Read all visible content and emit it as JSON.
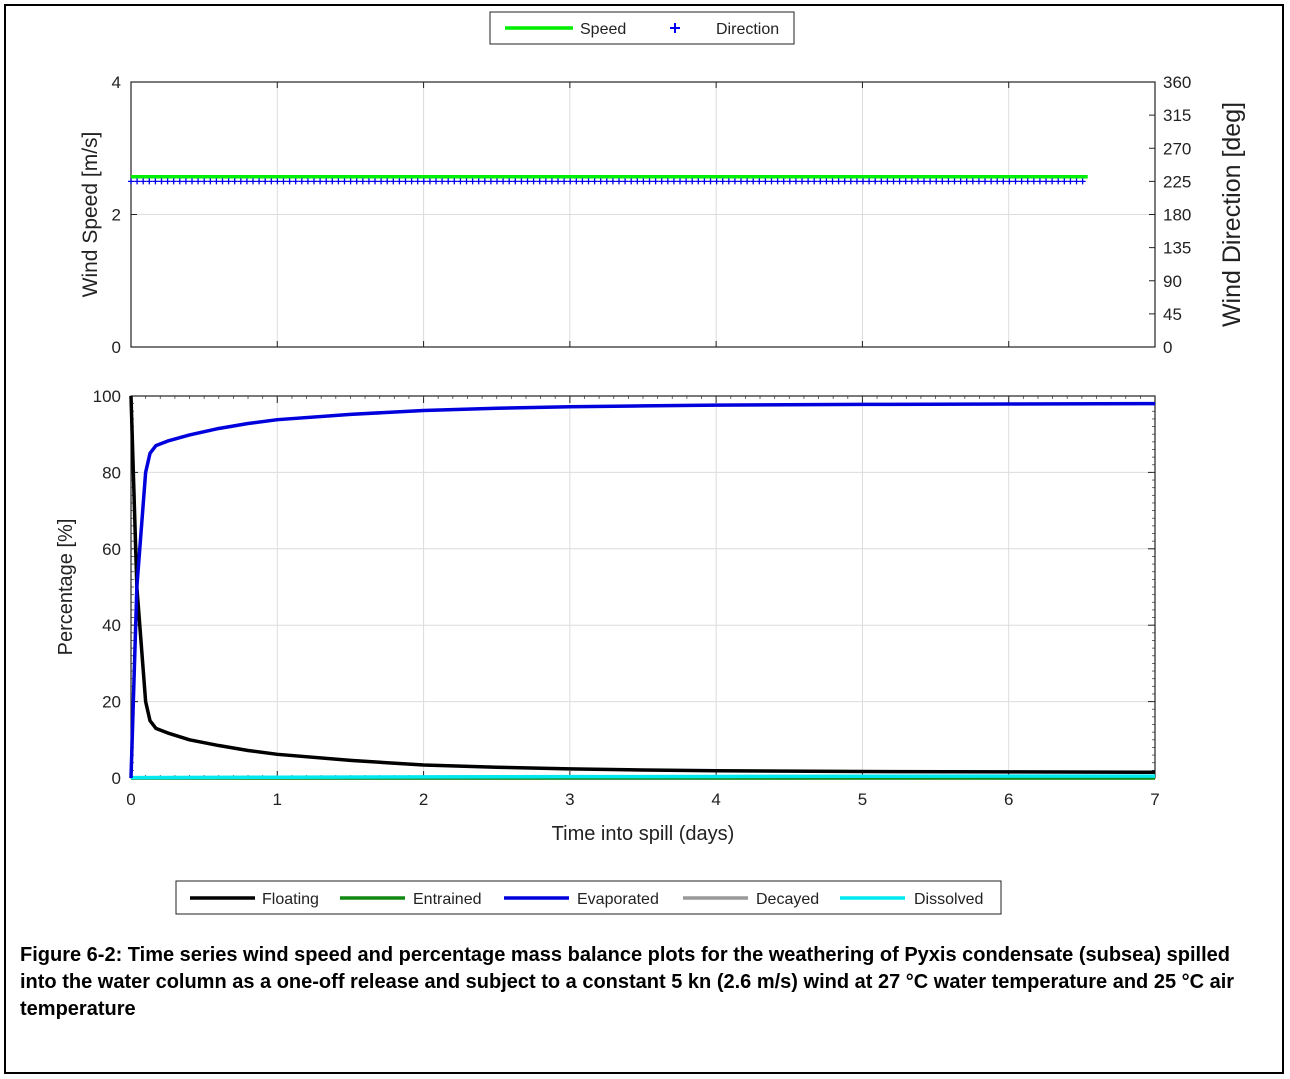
{
  "chart_data": [
    {
      "type": "line",
      "legend": {
        "placement": "top-center",
        "entries": [
          {
            "name": "Speed",
            "color": "#00ee00",
            "marker": "line"
          },
          {
            "name": "Direction",
            "color": "#0000ee",
            "marker": "plus"
          }
        ]
      },
      "xlim": [
        0,
        7
      ],
      "ylim_left": [
        0,
        4
      ],
      "yticks_left": [
        "0",
        "2",
        "4"
      ],
      "ylabel_left": "Wind Speed [m/s]",
      "ylim_right": [
        0,
        360
      ],
      "yticks_right": [
        "0",
        "45",
        "90",
        "135",
        "180",
        "225",
        "270",
        "315",
        "360"
      ],
      "ylabel_right": "Wind Direction [deg]",
      "grid": true,
      "series": [
        {
          "name": "Speed",
          "axis": "left",
          "x": [
            0,
            6.54
          ],
          "y": [
            2.57,
            2.57
          ]
        },
        {
          "name": "Direction",
          "axis": "right",
          "x_start": 0,
          "x_end": 6.54,
          "x_step": 0.0417,
          "y": 225
        }
      ]
    },
    {
      "type": "line",
      "xlim": [
        0,
        7
      ],
      "xticks": [
        "0",
        "1",
        "2",
        "3",
        "4",
        "5",
        "6",
        "7"
      ],
      "xlabel": "Time into spill (days)",
      "ylim": [
        0,
        100
      ],
      "yticks": [
        "0",
        "20",
        "40",
        "60",
        "80",
        "100"
      ],
      "ylabel": "Percentage  [%]",
      "grid": true,
      "legend": {
        "placement": "bottom-center",
        "entries": [
          {
            "name": "Floating",
            "color": "#000000"
          },
          {
            "name": "Entrained",
            "color": "#118811"
          },
          {
            "name": "Evaporated",
            "color": "#0000dd"
          },
          {
            "name": "Decayed",
            "color": "#999999"
          },
          {
            "name": "Dissolved",
            "color": "#00e8f0"
          }
        ]
      },
      "series": [
        {
          "name": "Floating",
          "x": [
            0,
            0.02,
            0.04,
            0.06,
            0.08,
            0.1,
            0.13,
            0.17,
            0.25,
            0.4,
            0.6,
            0.8,
            1.0,
            1.5,
            2.0,
            2.5,
            3.0,
            3.5,
            4.0,
            5.0,
            6.0,
            7.0
          ],
          "y": [
            100,
            75,
            50,
            40,
            30,
            20,
            15,
            13,
            11.8,
            10,
            8.5,
            7.2,
            6.2,
            4.6,
            3.4,
            2.8,
            2.4,
            2.1,
            1.9,
            1.7,
            1.6,
            1.5
          ]
        },
        {
          "name": "Entrained",
          "x": [
            0,
            7
          ],
          "y": [
            0,
            0
          ]
        },
        {
          "name": "Evaporated",
          "x": [
            0,
            0.02,
            0.04,
            0.06,
            0.08,
            0.1,
            0.13,
            0.17,
            0.25,
            0.4,
            0.6,
            0.8,
            1.0,
            1.5,
            2.0,
            2.5,
            3.0,
            3.5,
            4.0,
            5.0,
            6.0,
            7.0
          ],
          "y": [
            0,
            25,
            50,
            60,
            70,
            80,
            85,
            87,
            88.2,
            89.8,
            91.5,
            92.8,
            93.8,
            95.2,
            96.2,
            96.8,
            97.2,
            97.4,
            97.6,
            97.8,
            97.9,
            98.0
          ]
        },
        {
          "name": "Decayed",
          "x": [
            0,
            7
          ],
          "y": [
            0,
            0
          ]
        },
        {
          "name": "Dissolved",
          "x": [
            0,
            1,
            2,
            3,
            4,
            5,
            6,
            7
          ],
          "y": [
            0.1,
            0.2,
            0.3,
            0.35,
            0.4,
            0.45,
            0.5,
            0.5
          ]
        }
      ]
    }
  ],
  "caption": "Figure 6-2: Time series wind speed and percentage mass balance plots for the weathering of Pyxis condensate (subsea) spilled into the water column as a one-off release and subject to a constant 5 kn (2.6 m/s) wind at 27 °C water temperature and 25 °C air temperature"
}
